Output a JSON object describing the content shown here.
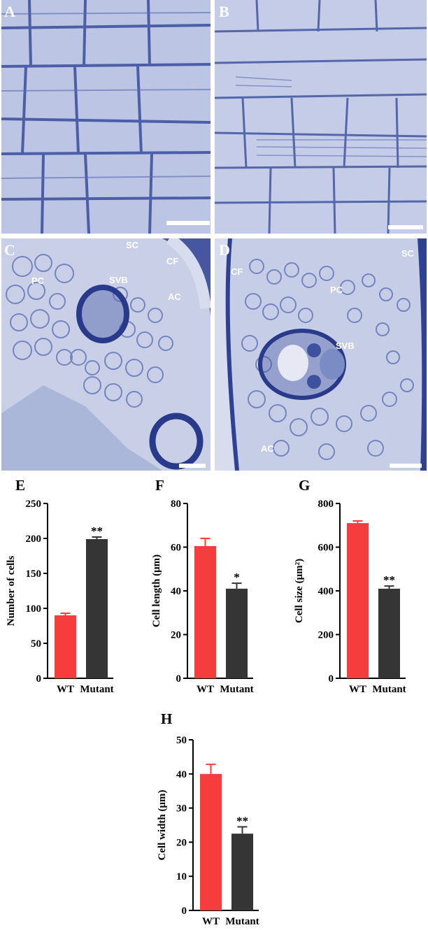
{
  "micrographs": [
    {
      "id": "A",
      "letter": "A",
      "labels": []
    },
    {
      "id": "B",
      "letter": "B",
      "labels": []
    },
    {
      "id": "C",
      "letter": "C",
      "labels": [
        "SC",
        "CF",
        "PC",
        "SVB",
        "AC"
      ]
    },
    {
      "id": "D",
      "letter": "D",
      "labels": [
        "CF",
        "SC",
        "PC",
        "SVB",
        "AC"
      ]
    }
  ],
  "colors": {
    "wt": "#f53d3d",
    "mutant": "#353535",
    "stain": "#3a4d9c",
    "background": "#c9cfe6"
  },
  "chart_data": [
    {
      "id": "E",
      "letter": "E",
      "type": "bar",
      "categories": [
        "WT",
        "Mutant"
      ],
      "values": [
        90,
        199
      ],
      "errors": [
        3,
        3
      ],
      "significance": [
        "",
        "**"
      ],
      "ylabel": "Number of cells",
      "ylim": [
        0,
        250
      ],
      "yticks": [
        "0",
        "50",
        "100",
        "150",
        "200",
        "250"
      ]
    },
    {
      "id": "F",
      "letter": "F",
      "type": "bar",
      "categories": [
        "WT",
        "Mutant"
      ],
      "values": [
        60.5,
        41
      ],
      "errors": [
        3.5,
        2.5
      ],
      "significance": [
        "",
        "*"
      ],
      "ylabel": "Cell length (μm)",
      "ylim": [
        0,
        80
      ],
      "yticks": [
        "0",
        "20",
        "40",
        "60",
        "80"
      ]
    },
    {
      "id": "G",
      "letter": "G",
      "type": "bar",
      "categories": [
        "WT",
        "Mutant"
      ],
      "values": [
        710,
        410
      ],
      "errors": [
        10,
        12
      ],
      "significance": [
        "",
        "**"
      ],
      "ylabel": "Cell size (μm²)",
      "ylim": [
        0,
        800
      ],
      "yticks": [
        "0",
        "200",
        "400",
        "600",
        "800"
      ]
    },
    {
      "id": "H",
      "letter": "H",
      "type": "bar",
      "categories": [
        "WT",
        "Mutant"
      ],
      "values": [
        40,
        22.5
      ],
      "errors": [
        2.8,
        2
      ],
      "significance": [
        "",
        "**"
      ],
      "ylabel": "Cell width (μm)",
      "ylim": [
        0,
        50
      ],
      "yticks": [
        "0",
        "10",
        "20",
        "30",
        "40",
        "50"
      ]
    }
  ]
}
